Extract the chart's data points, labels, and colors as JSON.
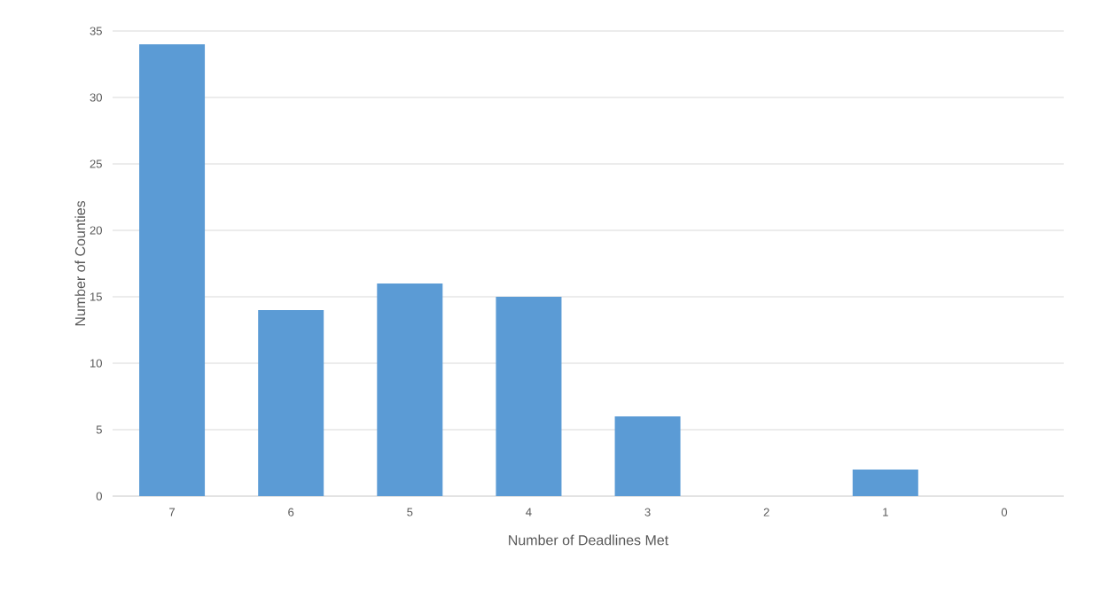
{
  "chart_data": {
    "type": "bar",
    "xlabel": "Number of Deadlines Met",
    "ylabel": "Number of Counties",
    "categories": [
      "7",
      "6",
      "5",
      "4",
      "3",
      "2",
      "1",
      "0"
    ],
    "values": [
      34,
      14,
      16,
      15,
      6,
      0,
      2,
      0
    ],
    "color": "#5b9bd5",
    "ylim": [
      0,
      35
    ],
    "yticks": [
      0,
      5,
      10,
      15,
      20,
      25,
      30,
      35
    ],
    "grid": "y"
  }
}
